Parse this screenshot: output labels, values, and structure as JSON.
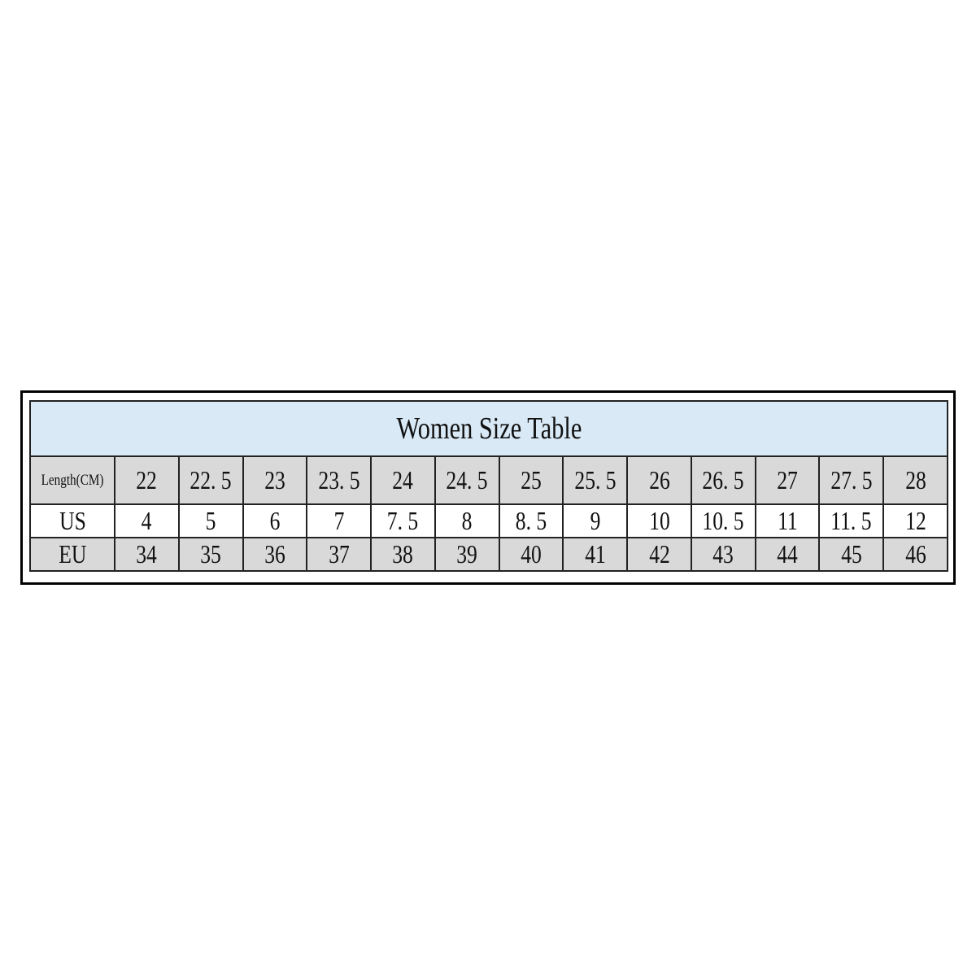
{
  "title": "Women Size Table",
  "rows": [
    {
      "label": "Length(CM)",
      "values": [
        "22",
        "22. 5",
        "23",
        "23. 5",
        "24",
        "24. 5",
        "25",
        "25. 5",
        "26",
        "26. 5",
        "27",
        "27. 5",
        "28"
      ]
    },
    {
      "label": "US",
      "values": [
        "4",
        "5",
        "6",
        "7",
        "7. 5",
        "8",
        "8. 5",
        "9",
        "10",
        "10. 5",
        "11",
        "11. 5",
        "12"
      ]
    },
    {
      "label": "EU",
      "values": [
        "34",
        "35",
        "36",
        "37",
        "38",
        "39",
        "40",
        "41",
        "42",
        "43",
        "44",
        "45",
        "46"
      ]
    }
  ],
  "colors": {
    "header_bg": "#d9e9f5",
    "row_gray": "#d9d9d9"
  }
}
